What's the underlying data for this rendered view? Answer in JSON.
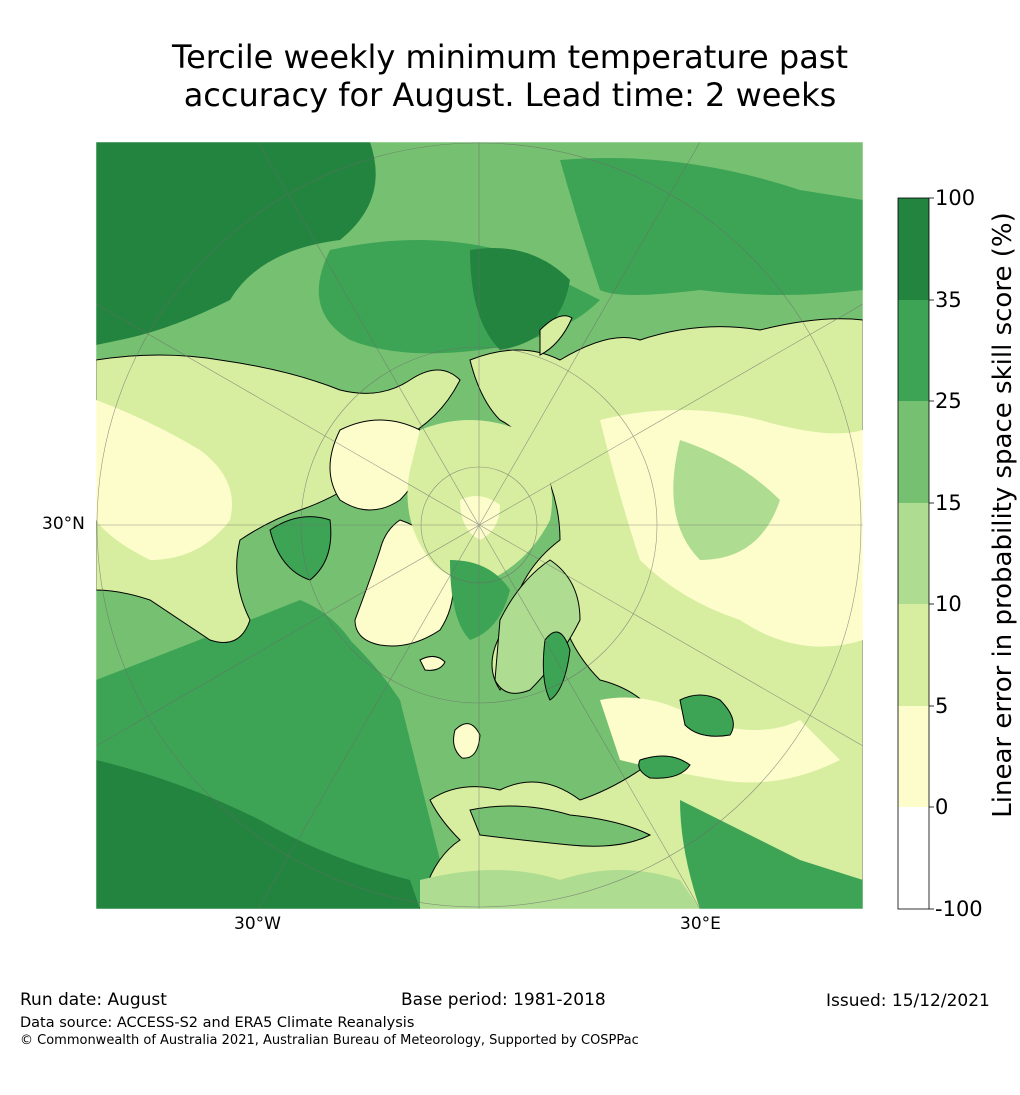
{
  "title": {
    "line1": "Tercile weekly minimum temperature past",
    "line2": "accuracy for August. Lead time: 2 weeks"
  },
  "axis_labels": {
    "lat_30n": "30°N",
    "lon_30w": "30°W",
    "lon_30e": "30°E"
  },
  "colorbar": {
    "label": "Linear error in probability space skill score (%)",
    "ticks": [
      "100",
      "35",
      "25",
      "15",
      "10",
      "5",
      "0",
      "-100"
    ],
    "colors": [
      "#23843f",
      "#3ea455",
      "#76c171",
      "#aedc91",
      "#d7eea0",
      "#fdfdcb",
      "#ffffff"
    ]
  },
  "footer": {
    "run_date": "Run date: August",
    "base_period": "Base period: 1981-2018",
    "issued": "Issued: 15/12/2021",
    "data_source": "Data source: ACCESS-S2 and ERA5 Climate Reanalysis",
    "copyright": "© Commonwealth of Australia 2021, Australian Bureau of Meteorology, Supported by COSPPac"
  }
}
